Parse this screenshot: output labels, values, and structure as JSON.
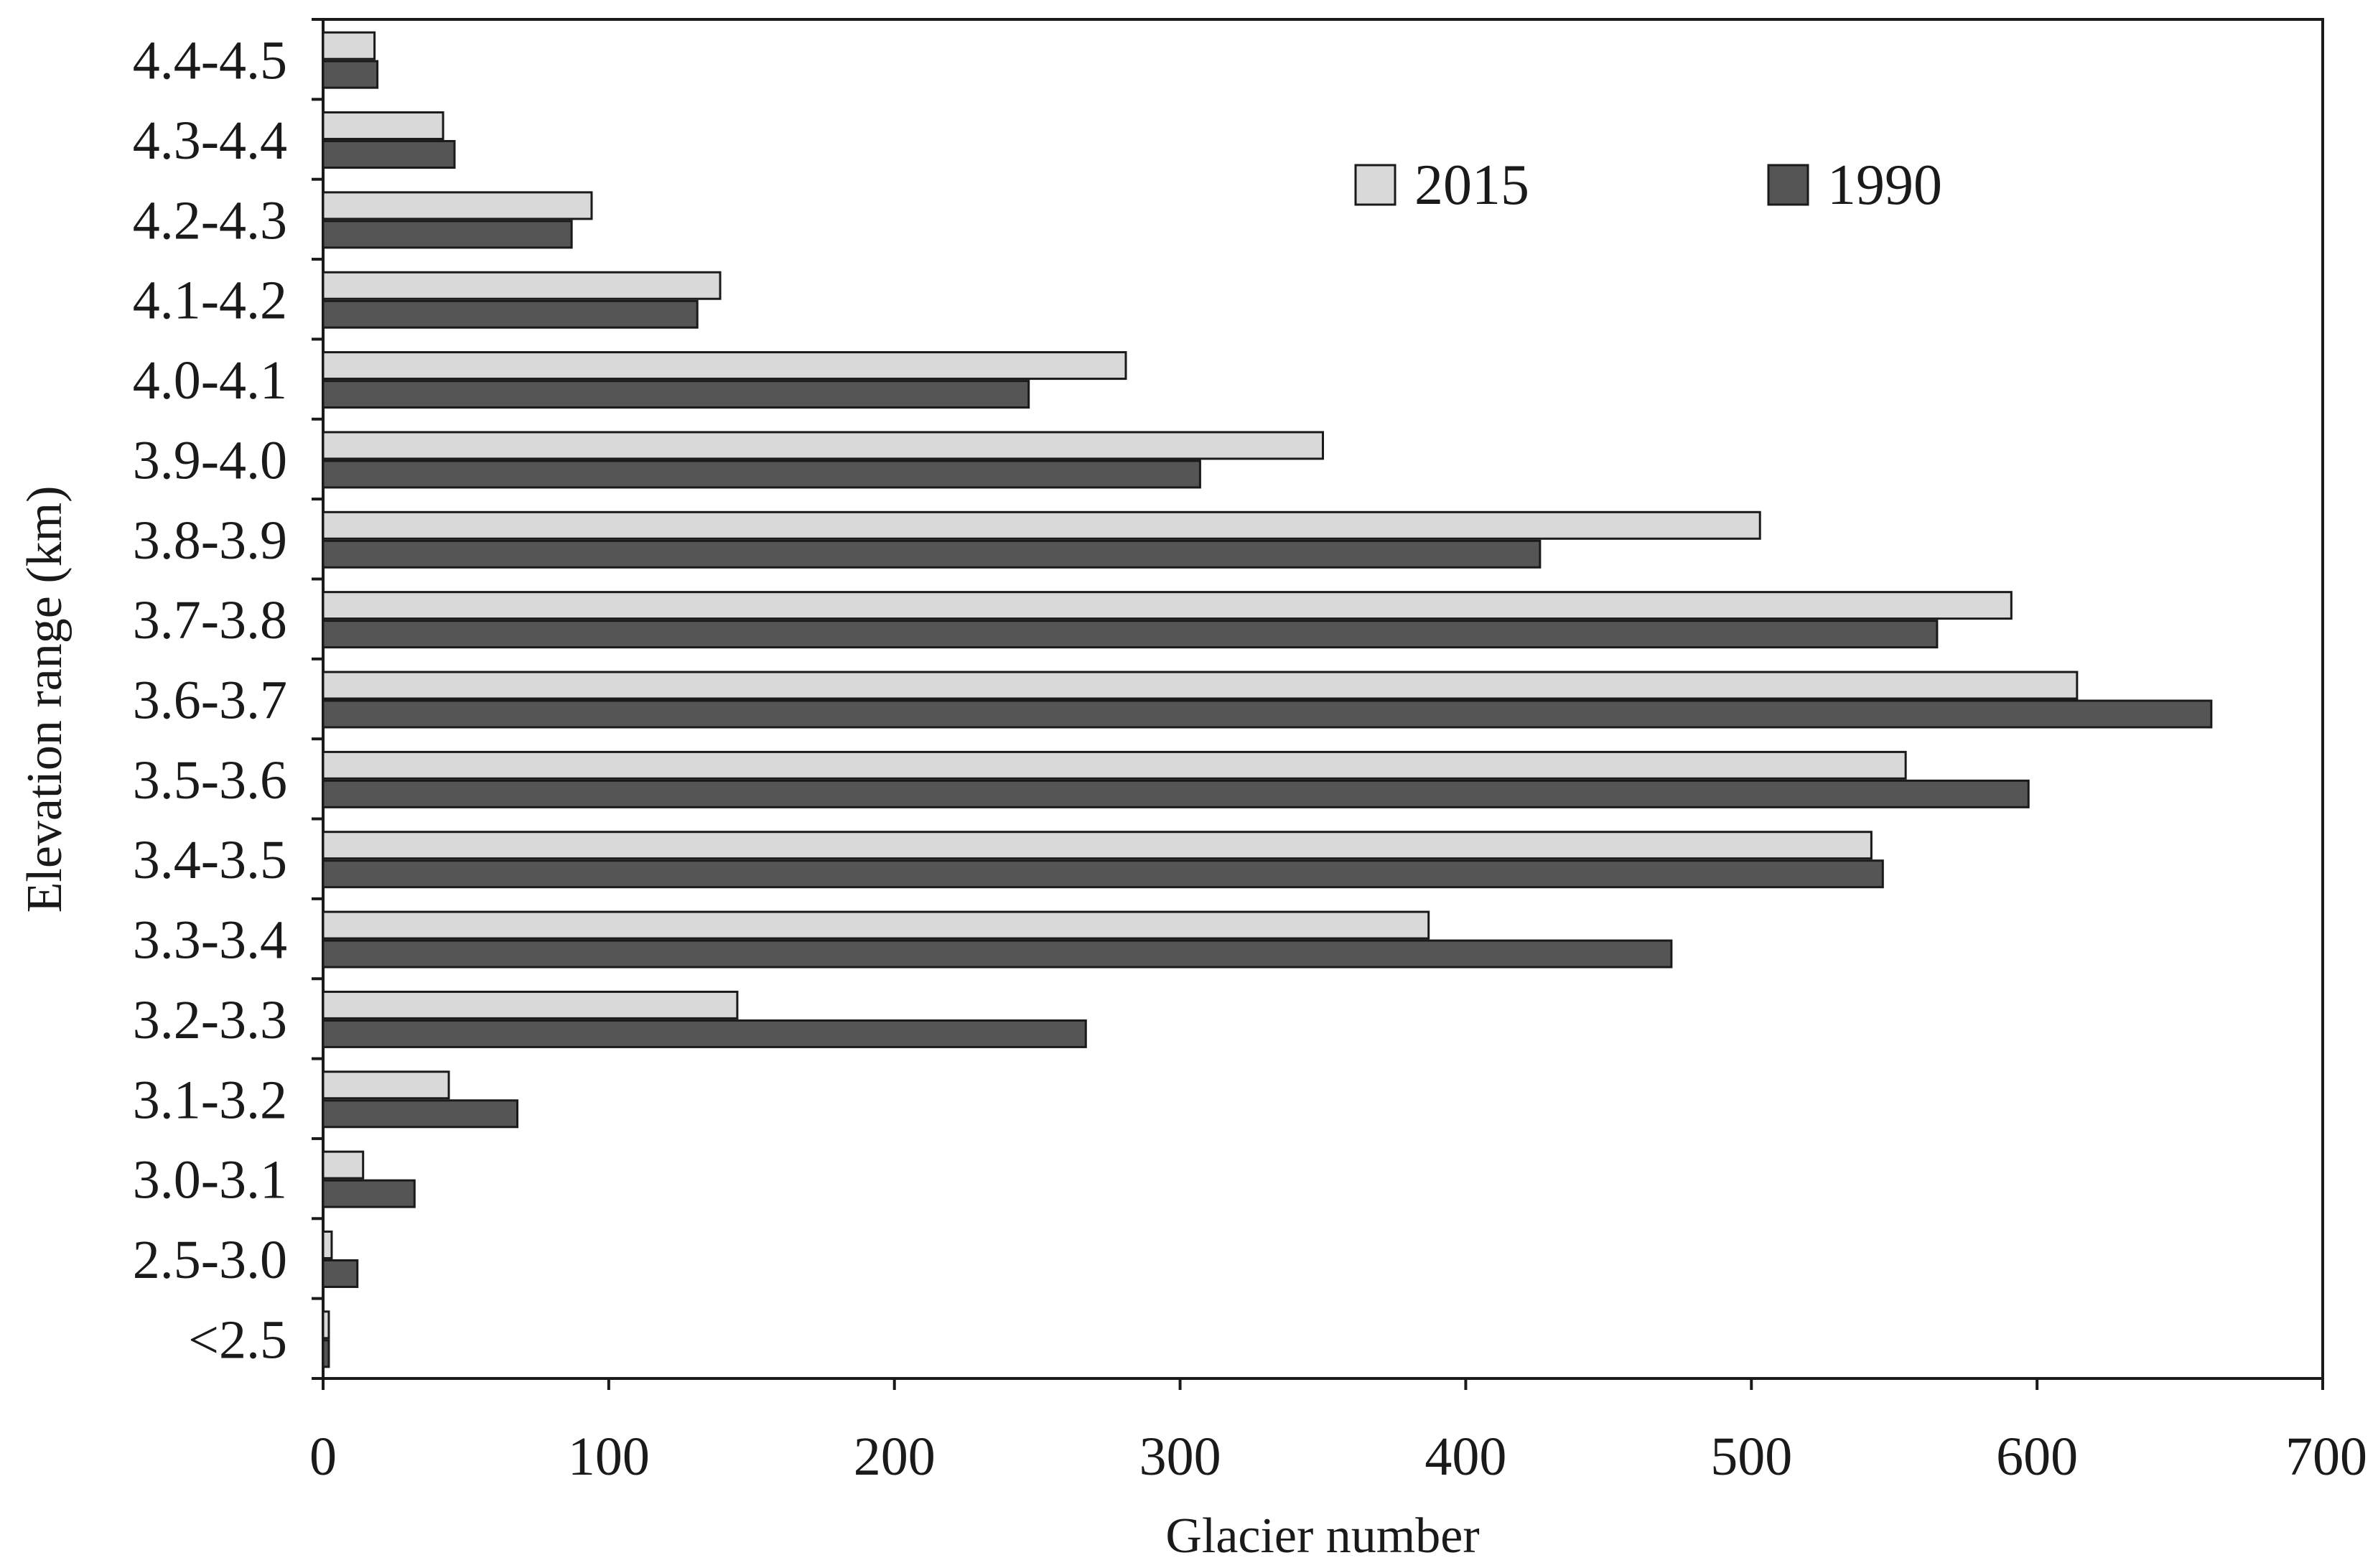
{
  "chart_data": {
    "type": "bar",
    "orientation": "horizontal",
    "categories": [
      "4.4-4.5",
      "4.3-4.4",
      "4.2-4.3",
      "4.1-4.2",
      "4.0-4.1",
      "3.9-4.0",
      "3.8-3.9",
      "3.7-3.8",
      "3.6-3.7",
      "3.5-3.6",
      "3.4-3.5",
      "3.3-3.4",
      "3.2-3.3",
      "3.1-3.2",
      "3.0-3.1",
      "2.5-3.0",
      "<2.5"
    ],
    "series": [
      {
        "name": "2015",
        "color": "#d9d9d9",
        "values": [
          18,
          42,
          94,
          139,
          281,
          350,
          503,
          591,
          614,
          554,
          542,
          387,
          145,
          44,
          14,
          3,
          2
        ]
      },
      {
        "name": "1990",
        "color": "#555555",
        "values": [
          19,
          46,
          87,
          131,
          247,
          307,
          426,
          565,
          661,
          597,
          546,
          472,
          267,
          68,
          32,
          12,
          2
        ]
      }
    ],
    "xlabel": "Glacier number",
    "ylabel": "Elevation range (km)",
    "xlim": [
      0,
      700
    ],
    "xticks": [
      "0",
      "100",
      "200",
      "300",
      "400",
      "500",
      "600",
      "700"
    ],
    "grid": false,
    "legend_position": "top-right"
  }
}
